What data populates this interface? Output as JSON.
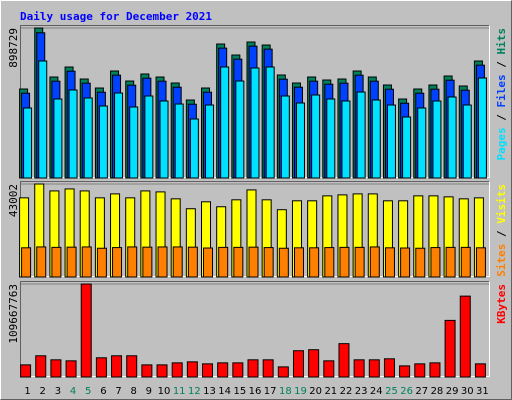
{
  "chart_data": [
    {
      "type": "bar",
      "title": "Daily usage for December 2021",
      "title_color": "#0000ff",
      "legend_separator": " / ",
      "categories": [
        "1",
        "2",
        "3",
        "4",
        "5",
        "6",
        "7",
        "8",
        "9",
        "10",
        "11",
        "12",
        "13",
        "14",
        "15",
        "16",
        "17",
        "18",
        "19",
        "20",
        "21",
        "22",
        "23",
        "24",
        "25",
        "26",
        "27",
        "28",
        "29",
        "30",
        "31"
      ],
      "category_colors": [
        "#000000",
        "#000000",
        "#000000",
        "#00805c",
        "#00805c",
        "#000000",
        "#000000",
        "#000000",
        "#000000",
        "#000000",
        "#00805c",
        "#00805c",
        "#000000",
        "#000000",
        "#000000",
        "#000000",
        "#000000",
        "#00805c",
        "#00805c",
        "#000000",
        "#000000",
        "#000000",
        "#000000",
        "#000000",
        "#00805c",
        "#00805c",
        "#000000",
        "#000000",
        "#000000",
        "#000000",
        "#000000"
      ],
      "ylim": [
        0,
        898729
      ],
      "yticks": [
        898729
      ],
      "series": [
        {
          "name": "Pages",
          "color": "#00e0ff",
          "values": [
            419400,
            701000,
            473300,
            527200,
            479300,
            431400,
            509200,
            425400,
            491300,
            461300,
            443300,
            353500,
            437300,
            665000,
            581100,
            659000,
            665000,
            491300,
            449300,
            497300,
            473300,
            461300,
            515200,
            467300,
            437300,
            365500,
            419400,
            461300,
            485300,
            437300,
            599100
          ]
        },
        {
          "name": "Files",
          "color": "#0040ff",
          "values": [
            508000,
            870000,
            580000,
            640000,
            568000,
            514000,
            616000,
            556000,
            598000,
            580000,
            544000,
            442000,
            514000,
            778000,
            712000,
            790000,
            772000,
            592000,
            544000,
            580000,
            562000,
            568000,
            616000,
            580000,
            532000,
            448000,
            508000,
            532000,
            586000,
            526000,
            676000
          ]
        },
        {
          "name": "Hits",
          "color": "#00805c",
          "values": [
            533200,
            898729,
            605100,
            665000,
            593100,
            539200,
            641000,
            581100,
            623100,
            605100,
            569100,
            467300,
            539200,
            802800,
            736900,
            814800,
            796800,
            617100,
            569100,
            605100,
            587100,
            593100,
            641000,
            605100,
            557200,
            473300,
            533200,
            557200,
            611100,
            551200,
            700900
          ]
        }
      ]
    },
    {
      "type": "bar",
      "legend_separator": " / ",
      "ylim": [
        0,
        43002
      ],
      "yticks": [
        43002
      ],
      "series": [
        {
          "name": "Sites",
          "color": "#ff8000",
          "values": [
            13500,
            13900,
            13700,
            13800,
            13900,
            13300,
            13600,
            13900,
            13800,
            13900,
            13900,
            13800,
            13400,
            13700,
            13700,
            13800,
            13600,
            13300,
            13500,
            13500,
            13600,
            13700,
            13700,
            13900,
            13500,
            13400,
            13300,
            13600,
            13700,
            13700,
            13500
          ]
        },
        {
          "name": "Visits",
          "color": "#ffff00",
          "values": [
            36600,
            43002,
            39800,
            40720,
            39800,
            36600,
            38430,
            36600,
            39800,
            39350,
            36140,
            31570,
            34770,
            32480,
            35690,
            40260,
            35690,
            31110,
            35230,
            35230,
            37520,
            37970,
            38430,
            38430,
            35230,
            35230,
            37520,
            37520,
            37060,
            36140,
            36600
          ]
        }
      ]
    },
    {
      "type": "bar",
      "ylim": [
        0,
        109667763
      ],
      "yticks": [
        109667763
      ],
      "series": [
        {
          "name": "KBytes",
          "color": "#ff0000",
          "values": [
            14304000,
            25033000,
            20265000,
            19073000,
            109667763,
            22649000,
            25033000,
            25033000,
            14304000,
            14304000,
            16689000,
            17881000,
            15497000,
            16689000,
            16689000,
            20265000,
            20265000,
            11920000,
            30993000,
            32185000,
            19073000,
            39337000,
            20265000,
            20265000,
            21457000,
            13112000,
            15497000,
            16689000,
            66754000,
            95363000,
            15497000
          ]
        }
      ]
    }
  ]
}
